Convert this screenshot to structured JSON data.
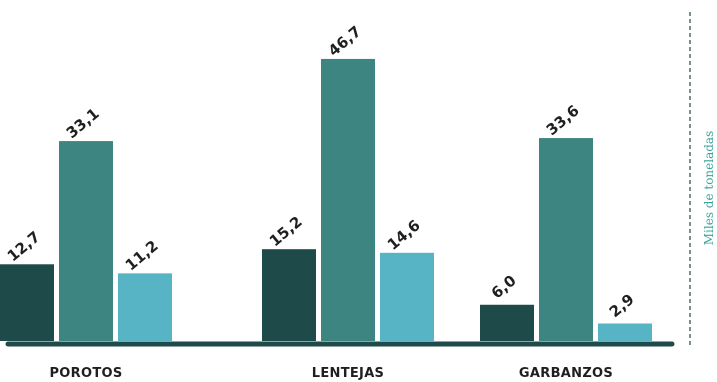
{
  "chart_data": {
    "type": "bar",
    "categories": [
      "POROTOS",
      "LENTEJAS",
      "GARBANZOS"
    ],
    "series": [
      {
        "values": [
          12.7,
          15.2,
          6.0
        ],
        "labels": [
          "12,7",
          "15,2",
          "6,0"
        ],
        "color": "#1e4a4a"
      },
      {
        "values": [
          33.1,
          46.7,
          33.6
        ],
        "labels": [
          "33,1",
          "46,7",
          "33,6"
        ],
        "color": "#3d8580"
      },
      {
        "values": [
          11.2,
          14.6,
          2.9
        ],
        "labels": [
          "11,2",
          "14,6",
          "2,9"
        ],
        "color": "#56b4c4"
      }
    ],
    "ylabel": "Miles de toneladas",
    "ylim": [
      0,
      50
    ],
    "grid": false,
    "colors": {
      "axis": "#1e4a4a",
      "ylabel": "#3aa39a",
      "dashed_line": "#1e4a4a"
    }
  }
}
